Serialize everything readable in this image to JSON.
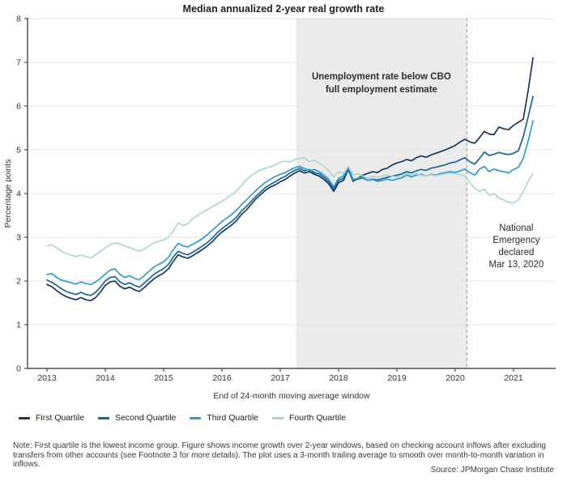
{
  "note": "Note: First quartile is the lowest income group. Figure shows income growth over 2-year windows, based on checking  account inflows after excluding transfers from other accounts (see Footnote 3 for more details). The plot uses  a 3-month trailing average to smooth over month-to-month variation in inflows.",
  "source": "Source: JPMorgan Chase Institute",
  "chart_data": {
    "type": "line",
    "title": "Median annualized 2-year real growth rate",
    "xlabel": "End of 24-month moving average window",
    "ylabel": "Percentage points",
    "ylim": [
      0,
      8
    ],
    "yticks": [
      0,
      1,
      2,
      3,
      4,
      5,
      6,
      7,
      8
    ],
    "xticks": [
      2013,
      2014,
      2015,
      2016,
      2017,
      2018,
      2019,
      2020,
      2021
    ],
    "grid": true,
    "legend_position": "bottom",
    "x_start_year": 2013.0,
    "x_step_years": 0.0833333,
    "colors": {
      "grid": "#e5e5e5",
      "axis": "#2f2f2f",
      "shade": "#ebebeb",
      "dashed": "#a6a6a6"
    },
    "annotations": {
      "shaded_region": {
        "from": 2017.27,
        "to": 2020.2,
        "label_lines": [
          "Unemployment rate below CBO",
          "full employment estimate"
        ]
      },
      "dashed_line": {
        "x": 2020.2,
        "label_lines": [
          "National",
          "Emergency",
          "declared",
          "Mar 13, 2020"
        ]
      }
    },
    "series": [
      {
        "name": "First Quartile",
        "color": "#17375e",
        "values": [
          1.92,
          1.87,
          1.78,
          1.7,
          1.64,
          1.6,
          1.57,
          1.62,
          1.57,
          1.55,
          1.62,
          1.75,
          1.9,
          1.98,
          2.0,
          1.88,
          1.82,
          1.86,
          1.8,
          1.76,
          1.85,
          1.95,
          2.05,
          2.12,
          2.18,
          2.28,
          2.45,
          2.6,
          2.55,
          2.52,
          2.58,
          2.65,
          2.72,
          2.8,
          2.9,
          3.02,
          3.12,
          3.2,
          3.28,
          3.38,
          3.52,
          3.62,
          3.75,
          3.88,
          3.98,
          4.08,
          4.15,
          4.2,
          4.27,
          4.32,
          4.4,
          4.47,
          4.52,
          4.47,
          4.5,
          4.44,
          4.4,
          4.32,
          4.22,
          4.05,
          4.25,
          4.3,
          4.55,
          4.28,
          4.35,
          4.42,
          4.46,
          4.5,
          4.48,
          4.55,
          4.58,
          4.65,
          4.7,
          4.73,
          4.78,
          4.75,
          4.82,
          4.86,
          4.83,
          4.88,
          4.92,
          4.96,
          5.0,
          5.05,
          5.1,
          5.18,
          5.24,
          5.18,
          5.15,
          5.28,
          5.42,
          5.36,
          5.35,
          5.52,
          5.48,
          5.46,
          5.56,
          5.63,
          5.7,
          6.35,
          7.1
        ]
      },
      {
        "name": "Second Quartile",
        "color": "#1b6497",
        "values": [
          2.02,
          1.97,
          1.9,
          1.82,
          1.76,
          1.72,
          1.69,
          1.74,
          1.69,
          1.67,
          1.74,
          1.86,
          2.0,
          2.08,
          2.1,
          1.98,
          1.92,
          1.96,
          1.9,
          1.86,
          1.95,
          2.05,
          2.15,
          2.22,
          2.28,
          2.38,
          2.55,
          2.68,
          2.63,
          2.6,
          2.66,
          2.73,
          2.8,
          2.88,
          2.98,
          3.1,
          3.2,
          3.28,
          3.36,
          3.46,
          3.6,
          3.7,
          3.82,
          3.94,
          4.04,
          4.14,
          4.21,
          4.27,
          4.34,
          4.39,
          4.47,
          4.53,
          4.57,
          4.52,
          4.55,
          4.48,
          4.45,
          4.37,
          4.27,
          4.1,
          4.3,
          4.35,
          4.58,
          4.3,
          4.33,
          4.36,
          4.3,
          4.33,
          4.31,
          4.34,
          4.37,
          4.4,
          4.42,
          4.45,
          4.5,
          4.47,
          4.52,
          4.55,
          4.53,
          4.58,
          4.6,
          4.63,
          4.66,
          4.7,
          4.72,
          4.77,
          4.82,
          4.73,
          4.67,
          4.8,
          4.95,
          4.87,
          4.9,
          4.94,
          4.91,
          4.89,
          4.92,
          4.98,
          5.3,
          5.75,
          6.22
        ]
      },
      {
        "name": "Third Quartile",
        "color": "#2e9dcf",
        "values": [
          2.15,
          2.17,
          2.08,
          2.02,
          1.99,
          1.96,
          1.93,
          1.98,
          1.94,
          1.92,
          1.98,
          2.06,
          2.16,
          2.25,
          2.28,
          2.15,
          2.08,
          2.12,
          2.06,
          2.03,
          2.12,
          2.22,
          2.32,
          2.38,
          2.44,
          2.54,
          2.72,
          2.86,
          2.8,
          2.78,
          2.84,
          2.9,
          2.97,
          3.06,
          3.16,
          3.26,
          3.36,
          3.44,
          3.52,
          3.62,
          3.74,
          3.85,
          3.96,
          4.07,
          4.17,
          4.26,
          4.33,
          4.39,
          4.44,
          4.48,
          4.54,
          4.59,
          4.62,
          4.57,
          4.52,
          4.55,
          4.5,
          4.42,
          4.32,
          4.15,
          4.35,
          4.4,
          4.6,
          4.32,
          4.35,
          4.38,
          4.3,
          4.32,
          4.28,
          4.3,
          4.33,
          4.3,
          4.33,
          4.36,
          4.42,
          4.38,
          4.42,
          4.44,
          4.4,
          4.44,
          4.42,
          4.46,
          4.48,
          4.5,
          4.48,
          4.52,
          4.56,
          4.48,
          4.42,
          4.56,
          4.62,
          4.5,
          4.56,
          4.52,
          4.5,
          4.47,
          4.55,
          4.6,
          4.8,
          5.2,
          5.66
        ]
      },
      {
        "name": "Fourth Quartile",
        "color": "#a8d5d1",
        "values": [
          2.8,
          2.83,
          2.76,
          2.68,
          2.63,
          2.59,
          2.56,
          2.59,
          2.56,
          2.53,
          2.59,
          2.68,
          2.76,
          2.83,
          2.87,
          2.85,
          2.8,
          2.76,
          2.72,
          2.68,
          2.73,
          2.8,
          2.87,
          2.91,
          2.94,
          3.0,
          3.15,
          3.33,
          3.27,
          3.31,
          3.43,
          3.5,
          3.57,
          3.63,
          3.7,
          3.76,
          3.82,
          3.9,
          3.97,
          4.06,
          4.18,
          4.31,
          4.41,
          4.48,
          4.54,
          4.58,
          4.61,
          4.66,
          4.72,
          4.74,
          4.72,
          4.78,
          4.8,
          4.82,
          4.73,
          4.76,
          4.7,
          4.62,
          4.52,
          4.38,
          4.5,
          4.45,
          4.62,
          4.43,
          4.45,
          4.4,
          4.35,
          4.4,
          4.37,
          4.4,
          4.43,
          4.4,
          4.38,
          4.41,
          4.46,
          4.42,
          4.45,
          4.42,
          4.4,
          4.43,
          4.41,
          4.43,
          4.46,
          4.46,
          4.46,
          4.43,
          4.4,
          4.25,
          4.12,
          4.05,
          4.1,
          3.96,
          4.0,
          3.9,
          3.85,
          3.8,
          3.78,
          3.86,
          4.05,
          4.28,
          4.46
        ]
      }
    ]
  },
  "legend": {
    "items": [
      {
        "label": "First Quartile"
      },
      {
        "label": "Second Quartile"
      },
      {
        "label": "Third Quartile"
      },
      {
        "label": "Fourth Quartile"
      }
    ]
  }
}
